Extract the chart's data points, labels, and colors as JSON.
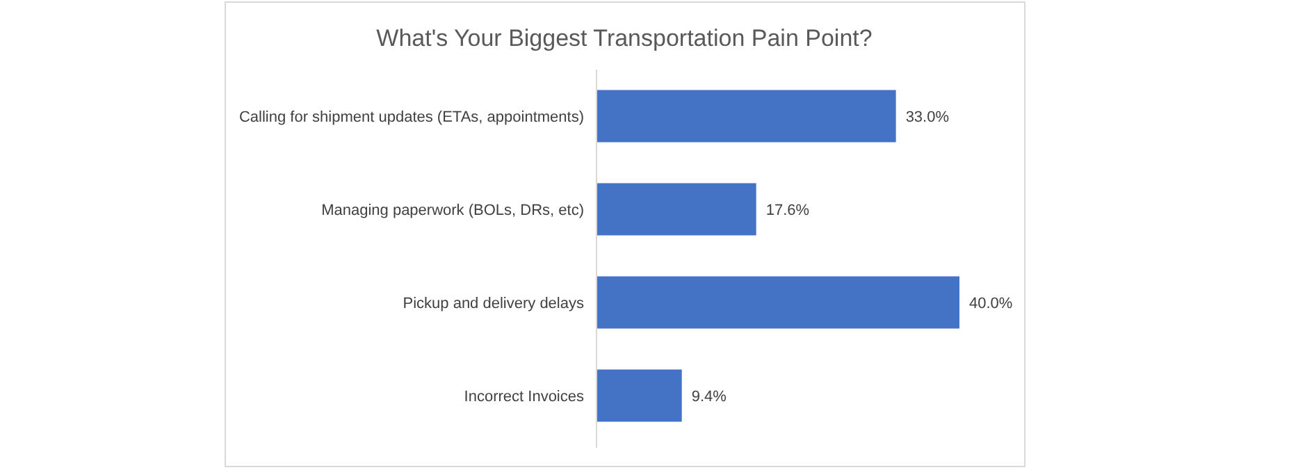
{
  "chart_data": {
    "type": "bar",
    "orientation": "horizontal",
    "title": "What's Your Biggest Transportation Pain Point?",
    "categories": [
      "Calling for shipment updates (ETAs, appointments)",
      "Managing paperwork (BOLs, DRs, etc)",
      "Pickup and delivery delays",
      "Incorrect Invoices"
    ],
    "values": [
      33.0,
      17.6,
      40.0,
      9.4
    ],
    "value_labels": [
      "33.0%",
      "17.6%",
      "40.0%",
      "9.4%"
    ],
    "color": "#4472c4",
    "grid": false
  }
}
